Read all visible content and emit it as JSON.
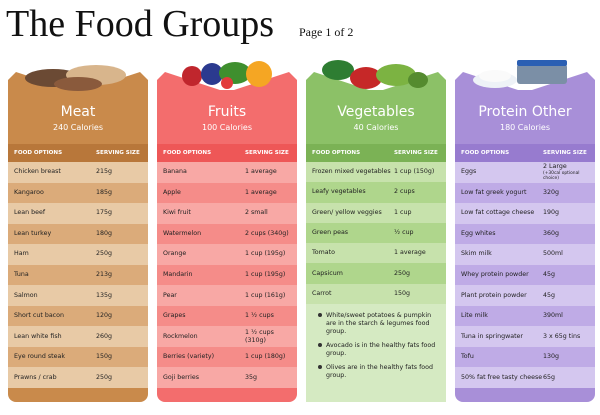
{
  "title": "The Food Groups",
  "page": "Page 1 of 2",
  "columns": [
    {
      "name": "Meat",
      "calories": "240 Calories",
      "headers": [
        "FOOD OPTIONS",
        "SERVING SIZE"
      ],
      "rows": [
        {
          "food": "Chicken breast",
          "serving": "215g"
        },
        {
          "food": "Kangaroo",
          "serving": "185g"
        },
        {
          "food": "Lean beef",
          "serving": "175g"
        },
        {
          "food": "Lean turkey",
          "serving": "180g"
        },
        {
          "food": "Ham",
          "serving": "250g"
        },
        {
          "food": "Tuna",
          "serving": "213g"
        },
        {
          "food": "Salmon",
          "serving": "135g"
        },
        {
          "food": "Short cut bacon",
          "serving": "120g"
        },
        {
          "food": "Lean white fish",
          "serving": "260g"
        },
        {
          "food": "Eye round steak",
          "serving": "150g"
        },
        {
          "food": "Prawns / crab",
          "serving": "250g"
        }
      ]
    },
    {
      "name": "Fruits",
      "calories": "100 Calories",
      "headers": [
        "FOOD OPTIONS",
        "SERVING SIZE"
      ],
      "rows": [
        {
          "food": "Banana",
          "serving": "1 average"
        },
        {
          "food": "Apple",
          "serving": "1 average"
        },
        {
          "food": "Kiwi fruit",
          "serving": "2 small"
        },
        {
          "food": "Watermelon",
          "serving": "2 cups (340g)"
        },
        {
          "food": "Orange",
          "serving": "1 cup (195g)"
        },
        {
          "food": "Mandarin",
          "serving": "1 cup (195g)"
        },
        {
          "food": "Pear",
          "serving": "1 cup (161g)"
        },
        {
          "food": "Grapes",
          "serving": "1 ½ cups"
        },
        {
          "food": "Rockmelon",
          "serving": "1 ½ cups (310g)"
        },
        {
          "food": "Berries (variety)",
          "serving": "1 cup (180g)"
        },
        {
          "food": "Goji berries",
          "serving": "35g"
        }
      ]
    },
    {
      "name": "Vegetables",
      "calories": "40 Calories",
      "headers": [
        "FOOD OPTIONS",
        "SERVING SIZE"
      ],
      "rows": [
        {
          "food": "Frozen mixed vegetables",
          "serving": "1 cup (150g)"
        },
        {
          "food": "Leafy vegetables",
          "serving": "2 cups"
        },
        {
          "food": "Green/ yellow veggies",
          "serving": "1 cup"
        },
        {
          "food": "Green peas",
          "serving": "½ cup"
        },
        {
          "food": "Tomato",
          "serving": "1 average"
        },
        {
          "food": "Capsicum",
          "serving": "250g"
        },
        {
          "food": "Carrot",
          "serving": "150g"
        }
      ],
      "notes": [
        "White/sweet potatoes & pumpkin are in the starch & legumes food group.",
        "Avocado is in the healthy fats food group.",
        "Olives are in the healthy fats food group."
      ]
    },
    {
      "name": "Protein Other",
      "calories": "180 Calories",
      "headers": [
        "FOOD OPTIONS",
        "SERVING SIZE"
      ],
      "rows": [
        {
          "food": "Eggs",
          "serving": "2 Large",
          "note": "(+30cal optional choice)"
        },
        {
          "food": "Low fat greek yogurt",
          "serving": "320g"
        },
        {
          "food": "Low fat cottage cheese",
          "serving": "190g"
        },
        {
          "food": "Egg whites",
          "serving": "360g"
        },
        {
          "food": "Skim milk",
          "serving": "500ml"
        },
        {
          "food": "Whey protein powder",
          "serving": "45g"
        },
        {
          "food": "Plant protein powder",
          "serving": "45g"
        },
        {
          "food": "Lite milk",
          "serving": "390ml"
        },
        {
          "food": "Tuna in springwater",
          "serving": "3 x 65g tins"
        },
        {
          "food": "Tofu",
          "serving": "130g"
        },
        {
          "food": "50% fat free tasty cheese",
          "serving": "65g"
        }
      ]
    }
  ]
}
